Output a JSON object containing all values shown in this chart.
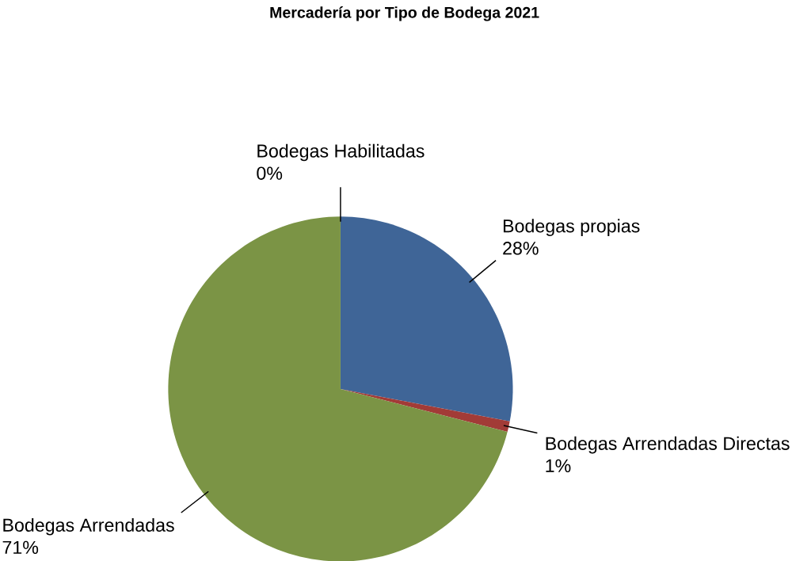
{
  "chart_data": {
    "type": "pie",
    "title": "Mercadería por Tipo de Bodega 2021",
    "categories": [
      "Bodegas propias",
      "Bodegas Arrendadas Directas",
      "Bodegas Arrendadas",
      "Bodegas Habilitadas"
    ],
    "values": [
      28,
      1,
      71,
      0
    ],
    "value_labels": [
      "28%",
      "1%",
      "71%",
      "0%"
    ],
    "colors": [
      "#3f6597",
      "#a23b37",
      "#7b9445",
      "#7f6aa0"
    ]
  }
}
